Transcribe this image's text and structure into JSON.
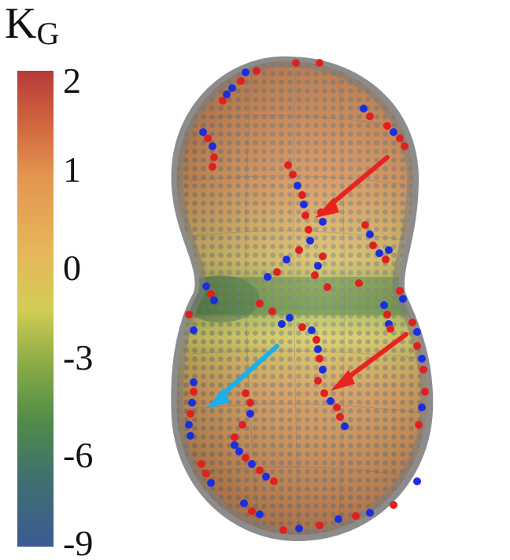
{
  "colorbar": {
    "title_main": "K",
    "title_sub": "G",
    "ticks": [
      "2",
      "1",
      "0",
      "-3",
      "-6",
      "-9"
    ]
  },
  "colors": {
    "red_dot": "#e02020",
    "blue_dot": "#1a2ee0",
    "red_arrow": "#e8231f",
    "cyan_arrow": "#1ab0ee",
    "shell": "#8c8c8c"
  }
}
